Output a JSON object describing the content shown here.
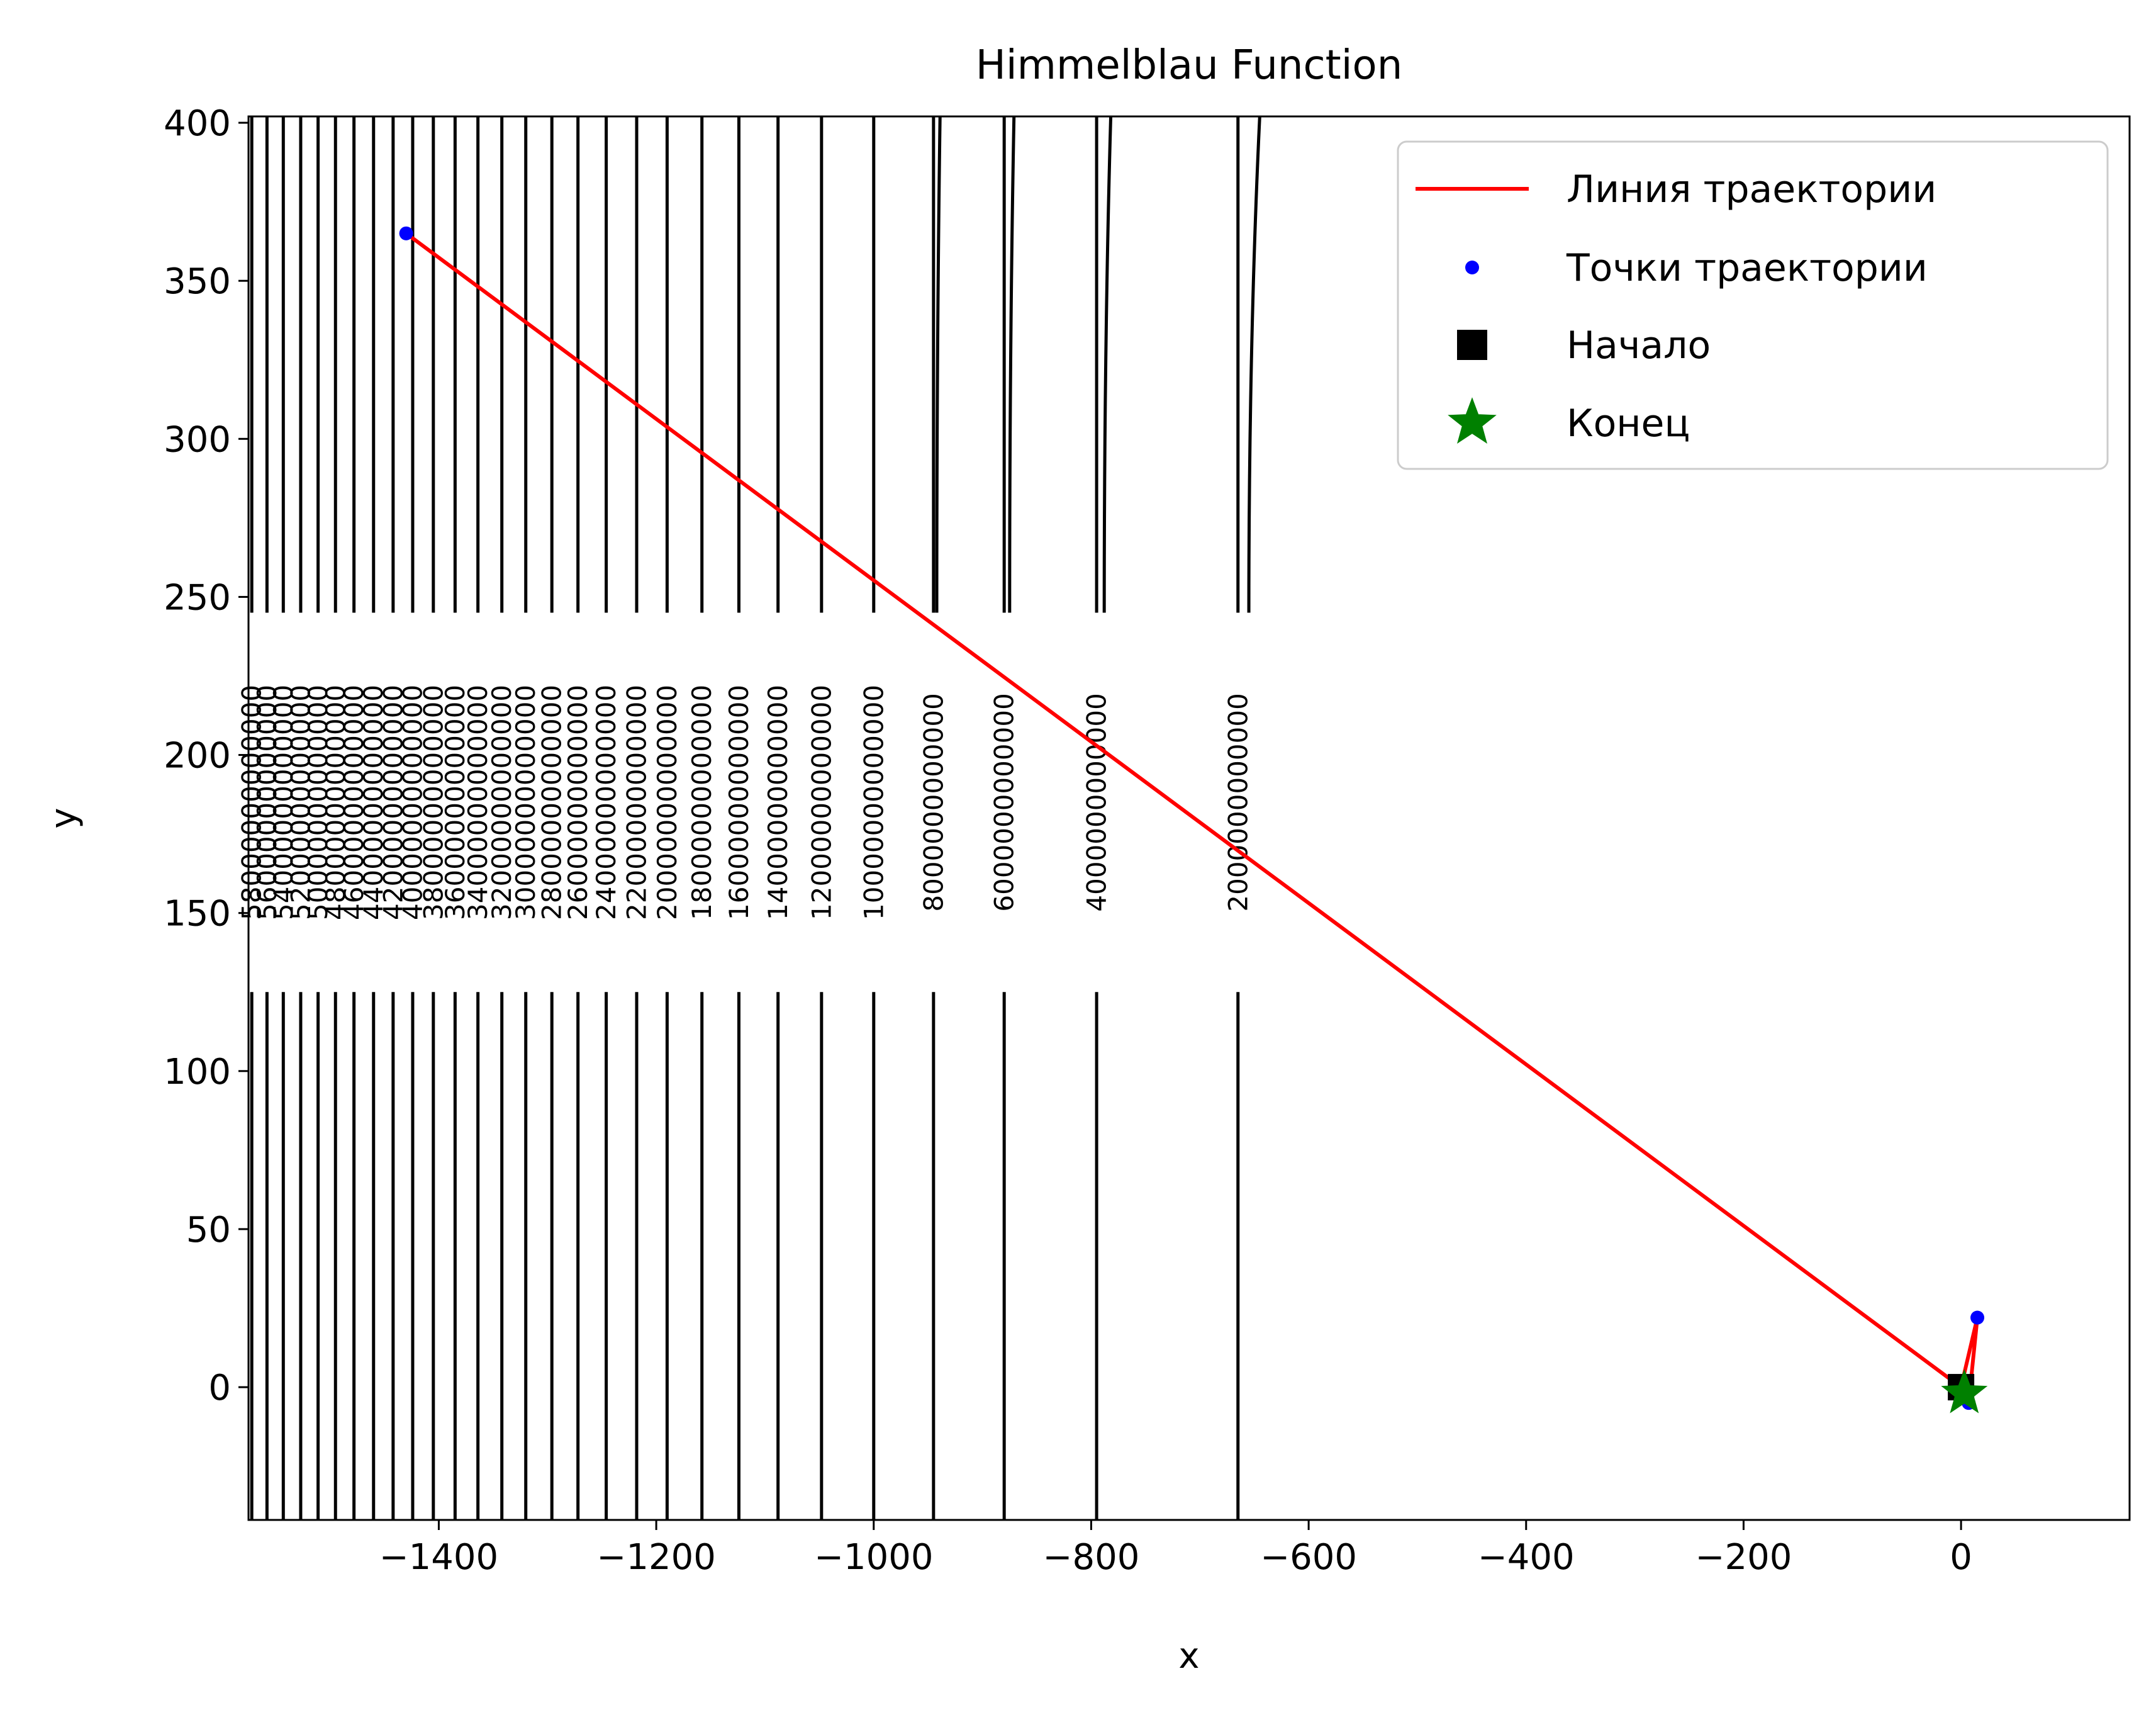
{
  "chart_data": {
    "type": "line",
    "title": "Himmelblau Function",
    "xlabel": "x",
    "ylabel": "y",
    "xlim": [
      -1575,
      155
    ],
    "ylim": [
      -42,
      402
    ],
    "xticks": [
      -1400,
      -1200,
      -1000,
      -800,
      -600,
      -400,
      -200,
      0
    ],
    "yticks": [
      0,
      50,
      100,
      150,
      200,
      250,
      300,
      350,
      400
    ],
    "grid": false,
    "legend_position": "top-right",
    "colors": {
      "trajectory_line": "#ff0000",
      "trajectory_points": "#0000ff",
      "start_marker": "#000000",
      "end_marker": "#008000",
      "contours": "#000000"
    },
    "legend": [
      {
        "label": "Линия траектории",
        "kind": "line"
      },
      {
        "label": "Точки траектории",
        "kind": "dot"
      },
      {
        "label": "Начало",
        "kind": "square"
      },
      {
        "label": "Конец",
        "kind": "star"
      }
    ],
    "trajectory": {
      "x": [
        0,
        -1430,
        0,
        15,
        7,
        3,
        3
      ],
      "y": [
        0,
        365,
        0,
        22,
        -5,
        -2,
        -2
      ]
    },
    "trajectory_points": {
      "x": [
        -1430,
        15,
        7
      ],
      "y": [
        365,
        22,
        -5
      ]
    },
    "start": {
      "x": 0,
      "y": 0
    },
    "end": {
      "x": 3,
      "y": -2
    },
    "contours": {
      "labeled": [
        {
          "x": -665,
          "label": "2000000000000"
        },
        {
          "x": -795,
          "label": "4000000000000"
        },
        {
          "x": -880,
          "label": "6000000000000"
        },
        {
          "x": -945,
          "label": "8000000000000"
        },
        {
          "x": -1000,
          "label": "10000000000000"
        },
        {
          "x": -1048,
          "label": "12000000000000"
        },
        {
          "x": -1088,
          "label": "14000000000000"
        },
        {
          "x": -1124,
          "label": "16000000000000"
        },
        {
          "x": -1158,
          "label": "18000000000000"
        },
        {
          "x": -1190,
          "label": "20000000000000"
        },
        {
          "x": -1218,
          "label": "22000000000000"
        },
        {
          "x": -1246,
          "label": "24000000000000"
        },
        {
          "x": -1272,
          "label": "26000000000000"
        },
        {
          "x": -1296,
          "label": "28000000000000"
        },
        {
          "x": -1320,
          "label": "30000000000000"
        },
        {
          "x": -1342,
          "label": "32000000000000"
        },
        {
          "x": -1364,
          "label": "34000000000000"
        },
        {
          "x": -1385,
          "label": "36000000000000"
        },
        {
          "x": -1405,
          "label": "38000000000000"
        },
        {
          "x": -1424,
          "label": "40000000000000"
        },
        {
          "x": -1442,
          "label": "42000000000000"
        },
        {
          "x": -1460,
          "label": "44000000000000"
        },
        {
          "x": -1478,
          "label": "46000000000000"
        },
        {
          "x": -1495,
          "label": "48000000000000"
        },
        {
          "x": -1511,
          "label": "50000000000000"
        },
        {
          "x": -1527,
          "label": "52000000000000"
        },
        {
          "x": -1543,
          "label": "54000000000000"
        },
        {
          "x": -1558,
          "label": "56000000000000"
        },
        {
          "x": -1572,
          "label": "58000000000000"
        }
      ],
      "outer_lines": [
        {
          "x_bottom": -655,
          "x_top": -645
        },
        {
          "x_bottom": -788,
          "x_top": -782
        },
        {
          "x_bottom": -875,
          "x_top": -871
        },
        {
          "x_bottom": -942,
          "x_top": -939
        }
      ]
    }
  }
}
